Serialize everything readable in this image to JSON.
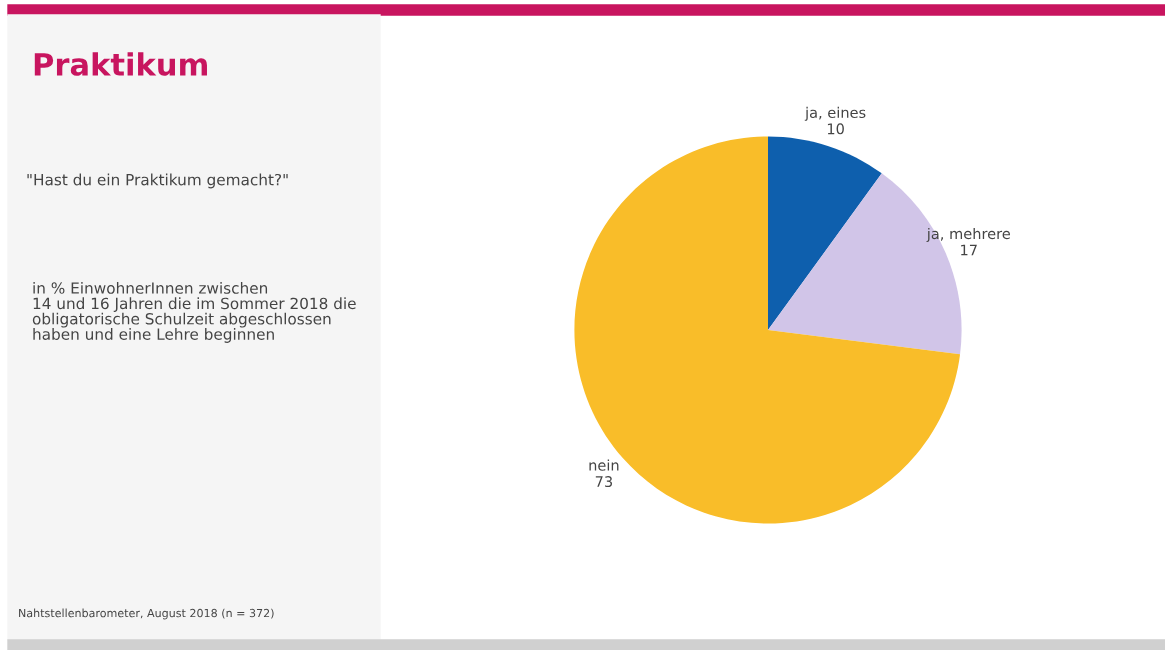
{
  "chart_data": {
    "type": "pie",
    "title": "Praktikum",
    "subtitle": "\"Hast du ein Praktikum gemacht?\"",
    "annotations": [
      "in % EinwohnerInnen zwischen\n14 und 16 Jahren die im Sommer 2018 die\nobligatorische Schulzeit abgeschlossen\nhaben und eine Lehre beginnen",
      "Nahtstellenbarometer, August 2018 (n = 372)"
    ],
    "categories": [
      "ja, eines",
      "ja, mehrere",
      "nein"
    ],
    "values": [
      10,
      17,
      73
    ],
    "colors": [
      "#0e5fad",
      "#d1c5e8",
      "#f9bd29"
    ],
    "data_labels": true,
    "legend": false
  }
}
